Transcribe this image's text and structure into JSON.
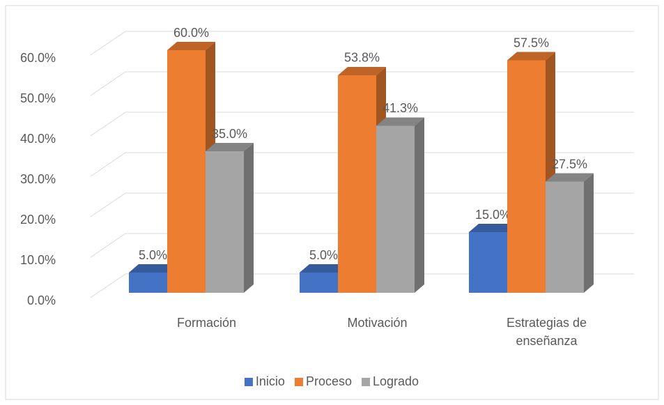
{
  "chart_data": {
    "type": "bar3d",
    "categories": [
      "Formación",
      "Motivación",
      "Estrategias de enseñanza"
    ],
    "series": [
      {
        "name": "Inicio",
        "color": "#4472c4",
        "values": [
          5.0,
          5.0,
          15.0
        ],
        "value_labels": [
          "5.0%",
          "5.0%",
          "15.0%"
        ]
      },
      {
        "name": "Proceso",
        "color": "#ed7d31",
        "values": [
          60.0,
          53.8,
          57.5
        ],
        "value_labels": [
          "60.0%",
          "53.8%",
          "57.5%"
        ]
      },
      {
        "name": "Logrado",
        "color": "#a5a5a5",
        "values": [
          35.0,
          41.3,
          27.5
        ],
        "value_labels": [
          "35.0%",
          "41.3%",
          "27.5%"
        ]
      }
    ],
    "ylim": [
      0,
      60
    ],
    "yticks": [
      {
        "value": 0,
        "label": "0.0%"
      },
      {
        "value": 10,
        "label": "10.0%"
      },
      {
        "value": 20,
        "label": "20.0%"
      },
      {
        "value": 30,
        "label": "30.0%"
      },
      {
        "value": 40,
        "label": "40.0%"
      },
      {
        "value": 50,
        "label": "50.0%"
      },
      {
        "value": 60,
        "label": "60.0%"
      }
    ],
    "grid": true,
    "legend": "bottom"
  }
}
